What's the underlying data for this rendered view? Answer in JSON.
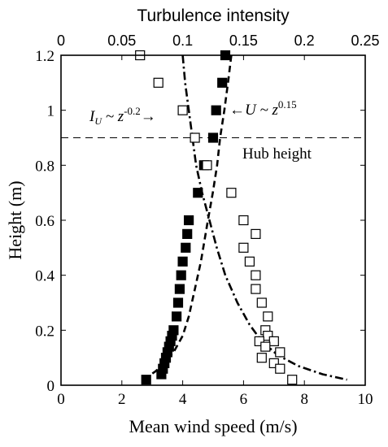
{
  "chart_data": {
    "type": "scatter",
    "xlabel": "Mean wind speed (m/s)",
    "ylabel": "Height (m)",
    "x2label": "Turbulence intensity",
    "xlim": [
      0,
      10
    ],
    "x2lim": [
      0,
      0.25
    ],
    "ylim": [
      0,
      1.2
    ],
    "x_ticks": [
      "0",
      "2",
      "4",
      "6",
      "8",
      "10"
    ],
    "x_tick_values": [
      0,
      2,
      4,
      6,
      8,
      10
    ],
    "x2_ticks": [
      "0",
      "0.05",
      "0.1",
      "0.15",
      "0.2",
      "0.25"
    ],
    "x2_tick_values": [
      0,
      0.05,
      0.1,
      0.15,
      0.2,
      0.25
    ],
    "y_ticks": [
      "0",
      "0.2",
      "0.4",
      "0.6",
      "0.8",
      "1",
      "1.2"
    ],
    "y_tick_values": [
      0,
      0.2,
      0.4,
      0.6,
      0.8,
      1.0,
      1.2
    ],
    "grid": false,
    "hub_height": {
      "label": "Hub height",
      "y": 0.9
    },
    "annotations": {
      "ti_fit": {
        "base": "I",
        "sub": "U",
        "mid": " ~ z",
        "sup": "-0.2",
        "arrow": "→"
      },
      "u_fit": {
        "arrow": "←",
        "base": "U ~ z",
        "sup": "0.15"
      }
    },
    "series": [
      {
        "marker": "filled-square",
        "axis": "bottom",
        "points": [
          [
            5.4,
            1.2
          ],
          [
            5.3,
            1.1
          ],
          [
            5.1,
            1.0
          ],
          [
            5.0,
            0.9
          ],
          [
            4.7,
            0.8
          ],
          [
            4.5,
            0.7
          ],
          [
            4.2,
            0.6
          ],
          [
            4.15,
            0.55
          ],
          [
            4.1,
            0.5
          ],
          [
            4.0,
            0.45
          ],
          [
            3.95,
            0.4
          ],
          [
            3.9,
            0.35
          ],
          [
            3.85,
            0.3
          ],
          [
            3.8,
            0.25
          ],
          [
            3.7,
            0.2
          ],
          [
            3.65,
            0.18
          ],
          [
            3.6,
            0.16
          ],
          [
            3.55,
            0.14
          ],
          [
            3.5,
            0.12
          ],
          [
            3.45,
            0.1
          ],
          [
            3.4,
            0.08
          ],
          [
            3.35,
            0.06
          ],
          [
            3.3,
            0.04
          ],
          [
            2.8,
            0.02
          ]
        ]
      },
      {
        "marker": "open-square",
        "axis": "top",
        "points": [
          [
            0.065,
            1.2
          ],
          [
            0.08,
            1.1
          ],
          [
            0.1,
            1.0
          ],
          [
            0.11,
            0.9
          ],
          [
            0.12,
            0.8
          ],
          [
            0.14,
            0.7
          ],
          [
            0.15,
            0.6
          ],
          [
            0.16,
            0.55
          ],
          [
            0.15,
            0.5
          ],
          [
            0.155,
            0.45
          ],
          [
            0.16,
            0.4
          ],
          [
            0.16,
            0.35
          ],
          [
            0.165,
            0.3
          ],
          [
            0.17,
            0.25
          ],
          [
            0.168,
            0.2
          ],
          [
            0.17,
            0.18
          ],
          [
            0.163,
            0.16
          ],
          [
            0.175,
            0.16
          ],
          [
            0.168,
            0.14
          ],
          [
            0.18,
            0.12
          ],
          [
            0.165,
            0.1
          ],
          [
            0.175,
            0.08
          ],
          [
            0.18,
            0.06
          ],
          [
            0.19,
            0.02
          ]
        ]
      }
    ],
    "fits": [
      {
        "style": "dashed",
        "axis": "bottom",
        "equation": "U ~ z^0.15",
        "points": [
          [
            5.6,
            1.2
          ],
          [
            5.49,
            1.1
          ],
          [
            5.37,
            1.0
          ],
          [
            5.23,
            0.9
          ],
          [
            5.13,
            0.8
          ],
          [
            4.99,
            0.7
          ],
          [
            4.83,
            0.6
          ],
          [
            4.6,
            0.45
          ],
          [
            4.4,
            0.35
          ],
          [
            4.2,
            0.25
          ],
          [
            4.0,
            0.18
          ],
          [
            3.7,
            0.12
          ],
          [
            3.4,
            0.08
          ],
          [
            3.1,
            0.05
          ],
          [
            2.9,
            0.035
          ],
          [
            2.75,
            0.02
          ]
        ]
      },
      {
        "style": "dash-dot",
        "axis": "top",
        "equation": "I_U ~ z^-0.2",
        "points": [
          [
            0.1,
            1.2
          ],
          [
            0.102,
            1.1
          ],
          [
            0.105,
            1.0
          ],
          [
            0.108,
            0.9
          ],
          [
            0.111,
            0.8
          ],
          [
            0.116,
            0.7
          ],
          [
            0.122,
            0.6
          ],
          [
            0.128,
            0.5
          ],
          [
            0.135,
            0.4
          ],
          [
            0.145,
            0.3
          ],
          [
            0.155,
            0.22
          ],
          [
            0.165,
            0.16
          ],
          [
            0.178,
            0.11
          ],
          [
            0.195,
            0.07
          ],
          [
            0.215,
            0.04
          ],
          [
            0.235,
            0.02
          ]
        ]
      }
    ]
  }
}
